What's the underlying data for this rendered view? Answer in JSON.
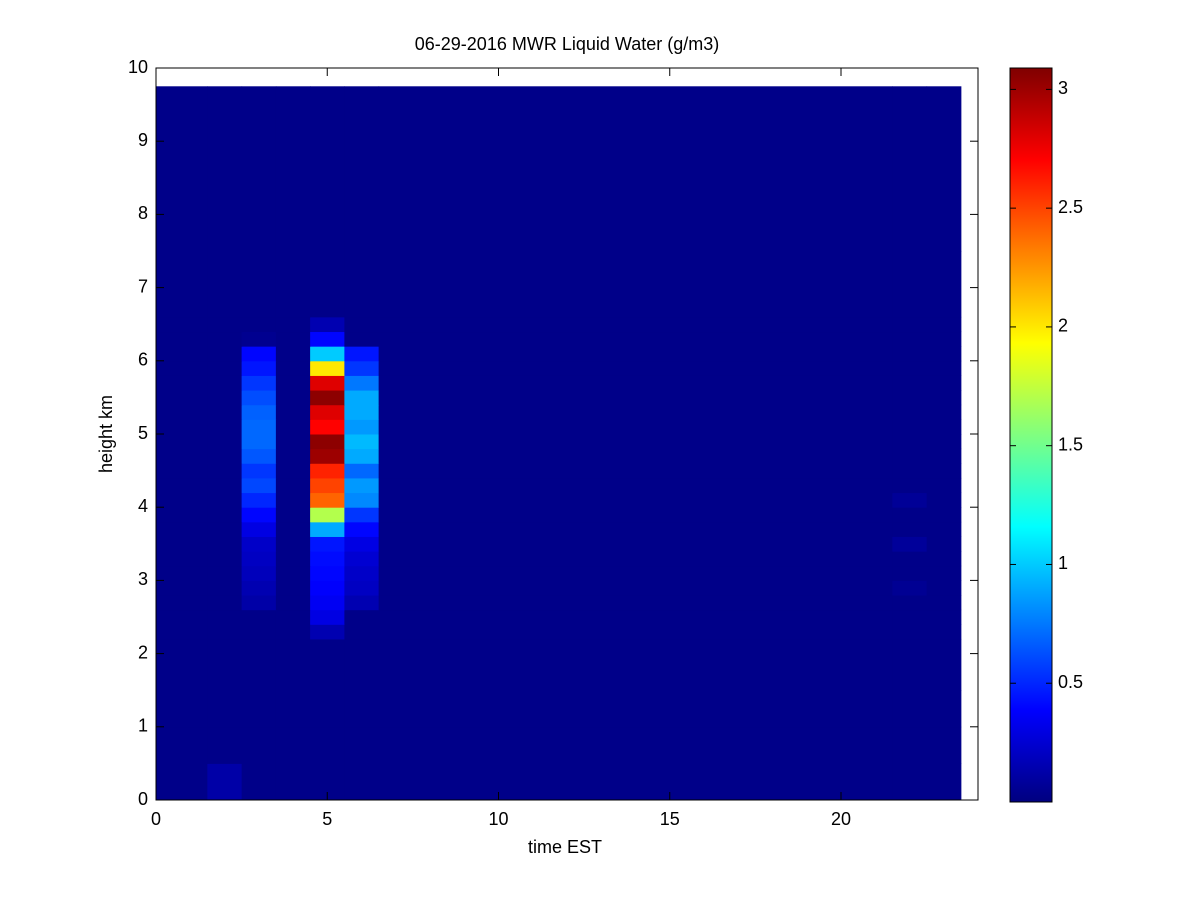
{
  "chart_data": {
    "type": "heatmap",
    "title": "06-29-2016 MWR Liquid Water (g/m3)",
    "x_label": "time EST",
    "y_label": "height km",
    "x_edges": [
      0,
      1.5,
      2.5,
      3.5,
      4.5,
      5.5,
      6.5,
      21.5,
      22.5,
      23.5
    ],
    "y_edges": [
      0,
      0.5,
      1,
      1.5,
      2.2,
      2.4,
      2.6,
      2.8,
      3.0,
      3.2,
      3.4,
      3.6,
      3.8,
      4.0,
      4.2,
      4.4,
      4.6,
      4.8,
      5.0,
      5.2,
      5.4,
      5.6,
      5.8,
      6.0,
      6.2,
      6.4,
      6.6,
      7.5,
      9.75
    ],
    "values": [
      [
        0.03,
        0.12,
        0.03,
        0.03,
        0.03,
        0.03,
        0.03,
        0.03,
        0.03
      ],
      [
        0.03,
        0.03,
        0.03,
        0.03,
        0.03,
        0.03,
        0.03,
        0.03,
        0.03
      ],
      [
        0.03,
        0.03,
        0.03,
        0.03,
        0.03,
        0.03,
        0.03,
        0.03,
        0.03
      ],
      [
        0.03,
        0.03,
        0.03,
        0.03,
        0.03,
        0.03,
        0.03,
        0.03,
        0.03
      ],
      [
        0.03,
        0.03,
        0.03,
        0.03,
        0.15,
        0.03,
        0.03,
        0.03,
        0.03
      ],
      [
        0.03,
        0.03,
        0.03,
        0.03,
        0.3,
        0.03,
        0.03,
        0.03,
        0.03
      ],
      [
        0.03,
        0.03,
        0.12,
        0.03,
        0.35,
        0.15,
        0.03,
        0.03,
        0.03
      ],
      [
        0.03,
        0.03,
        0.15,
        0.03,
        0.38,
        0.2,
        0.03,
        0.06,
        0.03
      ],
      [
        0.03,
        0.03,
        0.18,
        0.03,
        0.4,
        0.22,
        0.03,
        0.03,
        0.03
      ],
      [
        0.03,
        0.03,
        0.2,
        0.03,
        0.42,
        0.25,
        0.03,
        0.03,
        0.03
      ],
      [
        0.03,
        0.03,
        0.22,
        0.03,
        0.45,
        0.3,
        0.03,
        0.08,
        0.03
      ],
      [
        0.03,
        0.03,
        0.3,
        0.03,
        0.9,
        0.4,
        0.03,
        0.03,
        0.03
      ],
      [
        0.03,
        0.03,
        0.4,
        0.03,
        1.7,
        0.55,
        0.03,
        0.03,
        0.03
      ],
      [
        0.03,
        0.03,
        0.5,
        0.03,
        2.4,
        0.8,
        0.03,
        0.07,
        0.03
      ],
      [
        0.03,
        0.03,
        0.6,
        0.03,
        2.5,
        0.85,
        0.03,
        0.03,
        0.03
      ],
      [
        0.03,
        0.03,
        0.55,
        0.03,
        2.6,
        0.7,
        0.03,
        0.03,
        0.03
      ],
      [
        0.03,
        0.03,
        0.65,
        0.03,
        3.0,
        0.9,
        0.03,
        0.03,
        0.03
      ],
      [
        0.03,
        0.03,
        0.7,
        0.03,
        3.05,
        0.95,
        0.03,
        0.03,
        0.03
      ],
      [
        0.03,
        0.03,
        0.7,
        0.03,
        2.7,
        0.85,
        0.03,
        0.03,
        0.03
      ],
      [
        0.03,
        0.03,
        0.68,
        0.03,
        2.8,
        0.9,
        0.03,
        0.03,
        0.03
      ],
      [
        0.03,
        0.03,
        0.62,
        0.03,
        3.05,
        0.9,
        0.03,
        0.03,
        0.03
      ],
      [
        0.03,
        0.03,
        0.55,
        0.03,
        2.8,
        0.75,
        0.03,
        0.03,
        0.03
      ],
      [
        0.03,
        0.03,
        0.45,
        0.03,
        2.0,
        0.55,
        0.03,
        0.03,
        0.03
      ],
      [
        0.03,
        0.03,
        0.4,
        0.03,
        1.0,
        0.45,
        0.03,
        0.03,
        0.03
      ],
      [
        0.03,
        0.03,
        0.05,
        0.03,
        0.4,
        0.03,
        0.03,
        0.03,
        0.03
      ],
      [
        0.03,
        0.03,
        0.03,
        0.03,
        0.15,
        0.03,
        0.03,
        0.03,
        0.03
      ],
      [
        0.03,
        0.03,
        0.03,
        0.03,
        0.03,
        0.03,
        0.03,
        0.03,
        0.03
      ],
      [
        0.03,
        0.03,
        0.03,
        0.03,
        0.03,
        0.03,
        0.03,
        0.03,
        0.03
      ]
    ],
    "colormap": "jet",
    "xlim": [
      0,
      24
    ],
    "xticks": [
      0,
      5,
      10,
      15,
      20
    ],
    "ylim": [
      0,
      10
    ],
    "yticks": [
      0,
      1,
      2,
      3,
      4,
      5,
      6,
      7,
      8,
      9,
      10
    ],
    "clim": [
      0,
      3.09
    ],
    "cticks": [
      0.5,
      1,
      1.5,
      2,
      2.5,
      3
    ]
  }
}
